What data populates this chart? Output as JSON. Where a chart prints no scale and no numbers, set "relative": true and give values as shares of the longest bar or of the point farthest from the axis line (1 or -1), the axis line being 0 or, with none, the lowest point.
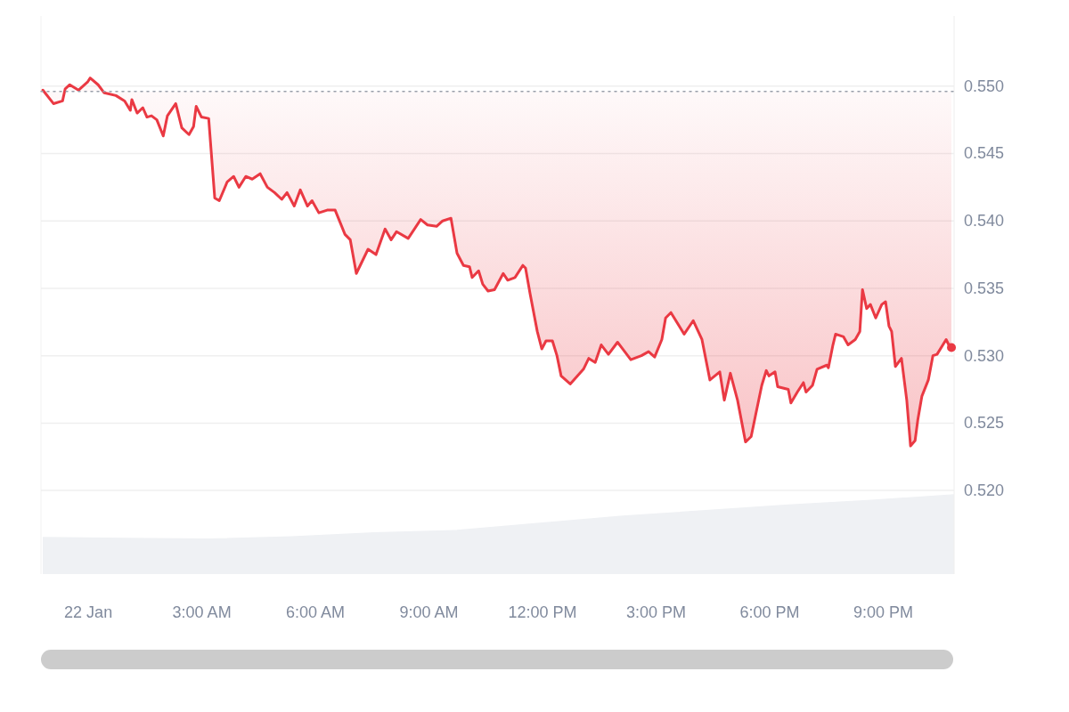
{
  "chart_data": [
    {
      "type": "line",
      "xlim": [
        -1.25,
        22.87
      ],
      "ylim": [
        0.5138,
        0.5552
      ],
      "xticks": [
        {
          "value": 0,
          "label": "22 Jan"
        },
        {
          "value": 3,
          "label": "3:00 AM"
        },
        {
          "value": 6,
          "label": "6:00 AM"
        },
        {
          "value": 9,
          "label": "9:00 AM"
        },
        {
          "value": 12,
          "label": "12:00 PM"
        },
        {
          "value": 15,
          "label": "3:00 PM"
        },
        {
          "value": 18,
          "label": "6:00 PM"
        },
        {
          "value": 21,
          "label": "9:00 PM"
        }
      ],
      "yticks": [
        {
          "value": 0.52,
          "label": "0.520"
        },
        {
          "value": 0.525,
          "label": "0.525"
        },
        {
          "value": 0.53,
          "label": "0.530"
        },
        {
          "value": 0.535,
          "label": "0.535"
        },
        {
          "value": 0.54,
          "label": "0.540"
        },
        {
          "value": 0.545,
          "label": "0.545"
        },
        {
          "value": 0.55,
          "label": "0.550"
        }
      ],
      "grid": "y",
      "ref_lines": [
        {
          "axis": "y",
          "value": 0.5496,
          "color": "#9aa0ab",
          "line_style": "dotted"
        }
      ],
      "series": [
        {
          "color": "#ea3943",
          "x": [
            -1.2,
            -0.92,
            -0.68,
            -0.61,
            -0.49,
            -0.26,
            -0.02,
            0.05,
            0.26,
            0.42,
            0.73,
            0.96,
            1.11,
            1.15,
            1.29,
            1.44,
            1.55,
            1.67,
            1.81,
            1.98,
            2.09,
            2.31,
            2.47,
            2.66,
            2.78,
            2.85,
            2.99,
            3.18,
            3.34,
            3.46,
            3.67,
            3.84,
            3.98,
            4.16,
            4.33,
            4.54,
            4.73,
            4.92,
            5.11,
            5.25,
            5.44,
            5.6,
            5.79,
            5.91,
            6.09,
            6.31,
            6.52,
            6.78,
            6.92,
            7.08,
            7.39,
            7.6,
            7.84,
            8.0,
            8.14,
            8.45,
            8.78,
            8.96,
            9.2,
            9.36,
            9.58,
            9.74,
            9.91,
            10.07,
            10.14,
            10.31,
            10.42,
            10.56,
            10.73,
            10.96,
            11.08,
            11.27,
            11.48,
            11.55,
            11.67,
            11.86,
            11.98,
            12.09,
            12.26,
            12.38,
            12.49,
            12.73,
            13.08,
            13.22,
            13.39,
            13.55,
            13.74,
            13.98,
            14.09,
            14.33,
            14.61,
            14.8,
            14.96,
            15.15,
            15.25,
            15.39,
            15.74,
            15.98,
            16.21,
            16.42,
            16.68,
            16.8,
            16.96,
            17.15,
            17.36,
            17.51,
            17.62,
            17.79,
            17.91,
            17.98,
            18.14,
            18.21,
            18.49,
            18.56,
            18.73,
            18.89,
            18.96,
            19.13,
            19.25,
            19.51,
            19.55,
            19.67,
            19.74,
            19.95,
            20.07,
            20.26,
            20.38,
            20.45,
            20.56,
            20.66,
            20.8,
            20.96,
            21.06,
            21.15,
            21.22,
            21.32,
            21.48,
            21.62,
            21.72,
            21.84,
            21.91,
            22.02,
            22.19,
            22.31,
            22.42,
            22.66,
            22.73,
            22.8
          ],
          "values": [
            0.5497,
            0.5487,
            0.5489,
            0.5498,
            0.5501,
            0.5497,
            0.5503,
            0.5506,
            0.5501,
            0.5495,
            0.5493,
            0.5489,
            0.5482,
            0.549,
            0.548,
            0.5484,
            0.5477,
            0.5478,
            0.5475,
            0.5463,
            0.5478,
            0.5487,
            0.5469,
            0.5464,
            0.547,
            0.5485,
            0.5477,
            0.5476,
            0.5417,
            0.5415,
            0.5429,
            0.5433,
            0.5425,
            0.5433,
            0.5431,
            0.5435,
            0.5425,
            0.5421,
            0.5416,
            0.5421,
            0.5411,
            0.5423,
            0.5411,
            0.5415,
            0.5406,
            0.5408,
            0.5408,
            0.539,
            0.5386,
            0.5361,
            0.5379,
            0.5375,
            0.5394,
            0.5386,
            0.5392,
            0.5387,
            0.5401,
            0.5397,
            0.5396,
            0.54,
            0.5402,
            0.5376,
            0.5367,
            0.5366,
            0.5358,
            0.5363,
            0.5353,
            0.5348,
            0.5349,
            0.5361,
            0.5356,
            0.5358,
            0.5367,
            0.5365,
            0.5346,
            0.5318,
            0.5305,
            0.5311,
            0.5311,
            0.53,
            0.5285,
            0.5279,
            0.529,
            0.5298,
            0.5295,
            0.5308,
            0.5301,
            0.531,
            0.5306,
            0.5297,
            0.53,
            0.5303,
            0.5299,
            0.5312,
            0.5328,
            0.5332,
            0.5316,
            0.5326,
            0.5312,
            0.5282,
            0.5288,
            0.5267,
            0.5287,
            0.5267,
            0.5236,
            0.524,
            0.5255,
            0.5278,
            0.5289,
            0.5285,
            0.5288,
            0.5277,
            0.5275,
            0.5265,
            0.5273,
            0.528,
            0.5273,
            0.5278,
            0.529,
            0.5293,
            0.5291,
            0.5308,
            0.5316,
            0.5314,
            0.5308,
            0.5312,
            0.5318,
            0.5349,
            0.5335,
            0.5338,
            0.5328,
            0.5338,
            0.534,
            0.5322,
            0.5318,
            0.5292,
            0.5298,
            0.5267,
            0.5233,
            0.5237,
            0.5252,
            0.527,
            0.5282,
            0.53,
            0.5301,
            0.5312,
            0.5308,
            0.5306
          ]
        }
      ]
    },
    {
      "type": "area",
      "relative": true,
      "categories": [
        null,
        null,
        null,
        null,
        null,
        null,
        null,
        null,
        null,
        null,
        null,
        null
      ],
      "series": [
        {
          "color": "#eff1f4",
          "values": [
            0.46,
            0.45,
            0.44,
            0.47,
            0.52,
            0.55,
            0.64,
            0.73,
            0.8,
            0.87,
            0.93,
            1
          ]
        }
      ]
    }
  ]
}
